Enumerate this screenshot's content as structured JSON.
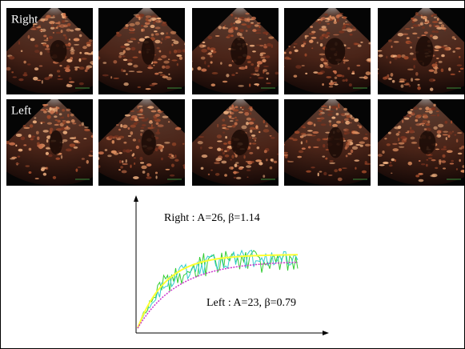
{
  "panels": {
    "rows": [
      {
        "label": "Right"
      },
      {
        "label": "Left"
      }
    ]
  },
  "graph": {
    "annotations": [
      "Right : A=26, β=1.14",
      "Left : A=23, β=0.79"
    ]
  }
}
